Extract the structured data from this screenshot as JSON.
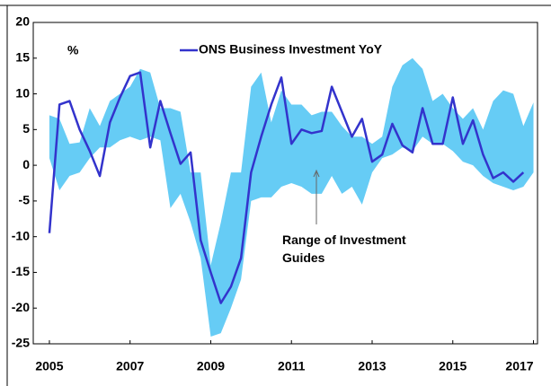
{
  "chart_data": {
    "type": "line",
    "y_label": "%",
    "xlim": [
      2004.6,
      2017.1
    ],
    "xticks": [
      2005,
      2007,
      2009,
      2011,
      2013,
      2015,
      2017
    ],
    "ylim": [
      -25,
      20
    ],
    "yticks": [
      -25,
      -20,
      -15,
      -10,
      -5,
      0,
      5,
      10,
      15,
      20
    ],
    "series": [
      {
        "name": "ONS Business Investment YoY",
        "color": "#3333cc",
        "x": [
          2005,
          2005.25,
          2005.5,
          2005.75,
          2006,
          2006.25,
          2006.5,
          2006.75,
          2007,
          2007.25,
          2007.5,
          2007.75,
          2008,
          2008.25,
          2008.5,
          2008.75,
          2009,
          2009.25,
          2009.5,
          2009.75,
          2010,
          2010.25,
          2010.5,
          2010.75,
          2011,
          2011.25,
          2011.5,
          2011.75,
          2012,
          2012.25,
          2012.5,
          2012.75,
          2013,
          2013.25,
          2013.5,
          2013.75,
          2014,
          2014.25,
          2014.5,
          2014.75,
          2015,
          2015.25,
          2015.5,
          2015.75,
          2016,
          2016.25,
          2016.5,
          2016.75
        ],
        "values": [
          -9.5,
          8.5,
          9,
          5,
          2,
          -1.5,
          6,
          9.5,
          12.5,
          13,
          2.5,
          9,
          4.5,
          0.2,
          1.8,
          -10.5,
          -15,
          -19.3,
          -17,
          -13,
          -1,
          4,
          8.5,
          12.3,
          3,
          5,
          4.5,
          4.8,
          11,
          7.5,
          4,
          6.5,
          0.5,
          1.5,
          5.8,
          2.8,
          1.8,
          8,
          3,
          3,
          9.5,
          3,
          6.3,
          1.5,
          -1.8,
          -1,
          -2.3,
          -1
        ]
      }
    ],
    "band": {
      "name": "Range of Investment Guides",
      "color": "#66ccf5",
      "x": [
        2005,
        2005.25,
        2005.5,
        2005.75,
        2006,
        2006.25,
        2006.5,
        2006.75,
        2007,
        2007.25,
        2007.5,
        2007.75,
        2008,
        2008.25,
        2008.5,
        2008.75,
        2009,
        2009.25,
        2009.5,
        2009.75,
        2010,
        2010.25,
        2010.5,
        2010.75,
        2011,
        2011.25,
        2011.5,
        2011.75,
        2012,
        2012.25,
        2012.5,
        2012.75,
        2013,
        2013.25,
        2013.5,
        2013.75,
        2014,
        2014.25,
        2014.5,
        2014.75,
        2015,
        2015.25,
        2015.5,
        2015.75,
        2016,
        2016.25,
        2016.5,
        2016.75,
        2017
      ],
      "upper": [
        7,
        6.5,
        3,
        3.2,
        8,
        5.5,
        9,
        10,
        11,
        13.5,
        13,
        8,
        8,
        7.5,
        -1,
        -1,
        -14,
        -8,
        -1,
        -1,
        11,
        13,
        6,
        10.5,
        8.5,
        8.5,
        7,
        7.5,
        7.5,
        5.5,
        4,
        4,
        3,
        4,
        11,
        14,
        15,
        13.5,
        9,
        10,
        8,
        6.5,
        8,
        5,
        9,
        10.5,
        10,
        5.5,
        8.8
      ],
      "lower": [
        1,
        -3.5,
        -1.5,
        -1,
        1,
        2.5,
        2.5,
        3.5,
        4,
        3.5,
        4,
        3.5,
        -6,
        -4,
        -8,
        -13,
        -24,
        -23.5,
        -20,
        -16,
        -5,
        -4.5,
        -4.5,
        -3,
        -2.5,
        -3,
        -4,
        -4,
        -1.5,
        -4,
        -3,
        -5.5,
        -1,
        1,
        1.5,
        2.5,
        2,
        4,
        3,
        3,
        2,
        0.5,
        0,
        -1.5,
        -2.5,
        -3,
        -3.5,
        -3,
        -1
      ]
    }
  }
}
